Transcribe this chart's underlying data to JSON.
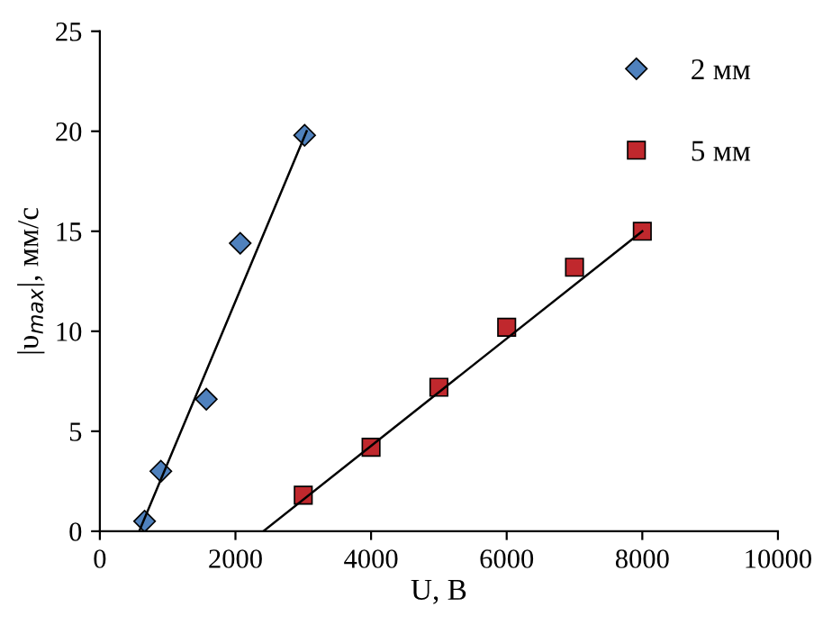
{
  "chart_data": {
    "type": "scatter",
    "xlabel": "U, В",
    "ylabel": "|υ$_{max}$|, мм/с",
    "xlim": [
      0,
      10000
    ],
    "ylim": [
      0,
      25
    ],
    "xticks": [
      0,
      2000,
      4000,
      6000,
      8000,
      10000
    ],
    "yticks": [
      0,
      5,
      10,
      15,
      20,
      25
    ],
    "grid": false,
    "legend": "top right",
    "series": [
      {
        "name": "2 мм",
        "color": "#4f81bd",
        "marker": "diamond",
        "x": [
          660,
          900,
          1570,
          2070,
          3020
        ],
        "values": [
          0.5,
          3.0,
          6.6,
          14.4,
          19.8
        ]
      },
      {
        "name": "5 мм",
        "color": "#c0282d",
        "marker": "square",
        "x": [
          3000,
          4000,
          5000,
          6000,
          7000,
          8000
        ],
        "values": [
          1.8,
          4.2,
          7.2,
          10.2,
          13.2,
          15.0
        ]
      },
      {
        "type": "line",
        "color": "#000000",
        "marker": "none",
        "x": [
          580,
          3050
        ],
        "values": [
          0,
          20
        ]
      },
      {
        "type": "line",
        "color": "#000000",
        "marker": "none",
        "x": [
          2410,
          8000
        ],
        "values": [
          0,
          15
        ]
      }
    ]
  }
}
